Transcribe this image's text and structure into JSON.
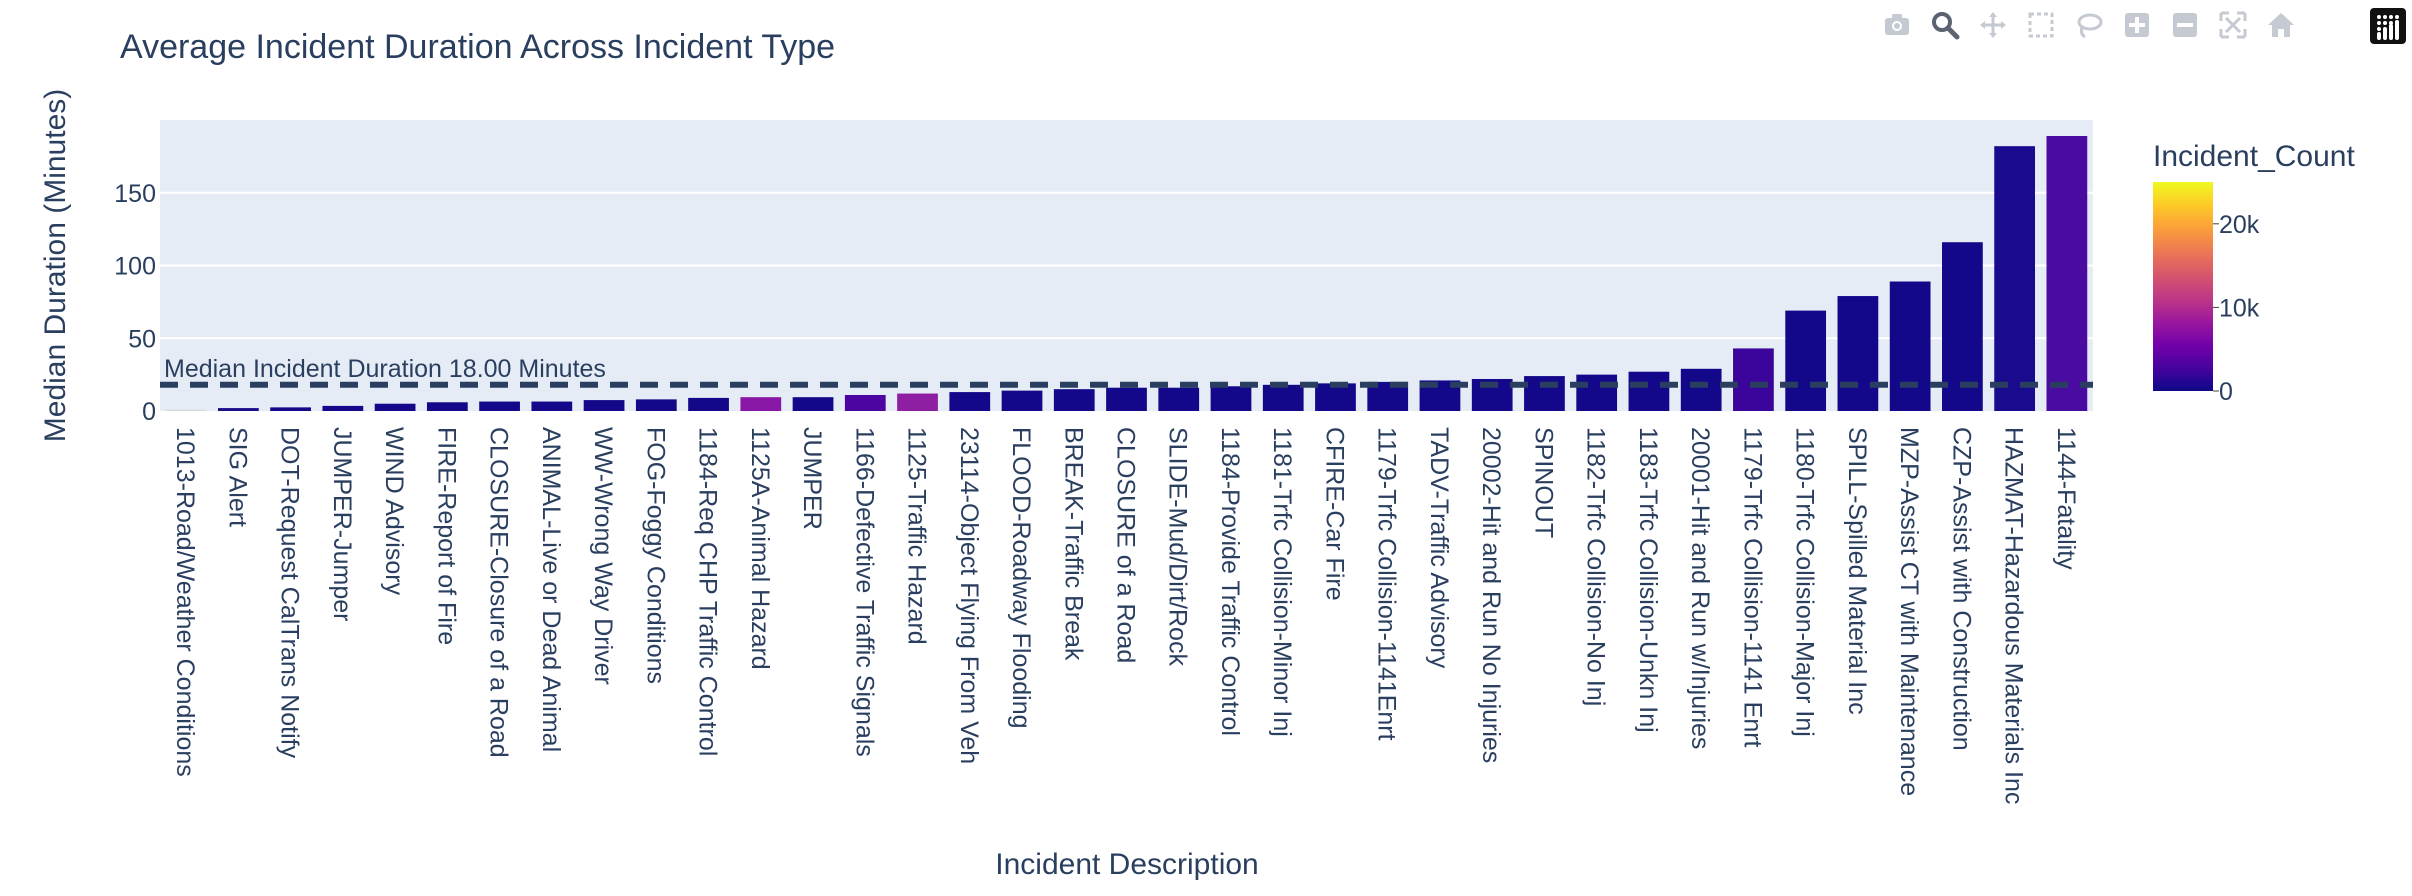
{
  "modebar": {
    "buttons": [
      {
        "name": "camera-icon",
        "active": false
      },
      {
        "name": "zoom-icon",
        "active": true
      },
      {
        "name": "pan-icon",
        "active": false
      },
      {
        "name": "box-select-icon",
        "active": false
      },
      {
        "name": "lasso-select-icon",
        "active": false
      },
      {
        "name": "zoom-in-icon",
        "active": false
      },
      {
        "name": "zoom-out-icon",
        "active": false
      },
      {
        "name": "autoscale-icon",
        "active": false
      },
      {
        "name": "reset-axes-icon",
        "active": false
      }
    ],
    "logo": "plotly-logo-icon",
    "icon_color": "#c4c9d2",
    "active_color": "#5b6270"
  },
  "chart_data": {
    "type": "bar",
    "title": "Average Incident Duration Across Incident Type",
    "xlabel": "Incident Description",
    "ylabel": "Median Duration (Minutes)",
    "ylim": [
      0,
      200
    ],
    "yticks": [
      0,
      50,
      100,
      150
    ],
    "grid": true,
    "categories": [
      "1013-Road/Weather Conditions",
      "SIG Alert",
      "DOT-Request CalTrans Notify",
      "JUMPER-Jumper",
      "WIND Advisory",
      "FIRE-Report of Fire",
      "CLOSURE-Closure of a Road",
      "ANIMAL-Live or Dead Animal",
      "WW-Wrong Way Driver",
      "FOG-Foggy Conditions",
      "1184-Req CHP Traffic Control",
      "1125A-Animal Hazard",
      "JUMPER",
      "1166-Defective Traffic Signals",
      "1125-Traffic Hazard",
      "23114-Object Flying From Veh",
      "FLOOD-Roadway Flooding",
      "BREAK-Traffic Break",
      "CLOSURE of a Road",
      "SLIDE-Mud/Dirt/Rock",
      "1184-Provide Traffic Control",
      "1181-Trfc Collision-Minor Inj",
      "CFIRE-Car Fire",
      "1179-Trfc Collision-1141Enrt",
      "TADV-Traffic Advisory",
      "20002-Hit and Run No Injuries",
      "SPINOUT",
      "1182-Trfc Collision-No Inj",
      "1183-Trfc Collision-Unkn Inj",
      "20001-Hit and Run w/Injuries",
      "1179-Trfc Collision-1141 Enrt",
      "1180-Trfc Collision-Major Inj",
      "SPILL-Spilled Material Inc",
      "MZP-Assist CT with Maintenance",
      "CZP-Assist with Construction",
      "HAZMAT-Hazardous Materials Inc",
      "1144-Fatality"
    ],
    "values": [
      1,
      2,
      2.5,
      3.5,
      5,
      6,
      6.5,
      6.5,
      7.5,
      8,
      9,
      9.5,
      9.5,
      11,
      12,
      13,
      14,
      15,
      16,
      16,
      17,
      18,
      19,
      20,
      21,
      22,
      24,
      25,
      27,
      29,
      43,
      69,
      79,
      89,
      116,
      182,
      189
    ],
    "colors": [
      "#dcdcdc",
      "#1a0d87",
      "#14088a",
      "#14088a",
      "#14088a",
      "#14088a",
      "#14088a",
      "#14088a",
      "#14088a",
      "#14088a",
      "#14088a",
      "#8a18a6",
      "#14088a",
      "#4c05a0",
      "#8e1fa3",
      "#14088a",
      "#14088a",
      "#14088a",
      "#14088a",
      "#14088a",
      "#14088a",
      "#14088a",
      "#14088a",
      "#14088a",
      "#14088a",
      "#14088a",
      "#14088a",
      "#14088a",
      "#14088a",
      "#14088a",
      "#3b049a",
      "#14088a",
      "#14088a",
      "#14088a",
      "#14088a",
      "#1a0a8e",
      "#4a0ba0"
    ],
    "reference_line": {
      "value": 18,
      "label": "Median Incident Duration 18.00 Minutes"
    },
    "colorbar": {
      "title": "Incident_Count",
      "ticks": [
        0,
        10000,
        20000
      ],
      "tick_labels": [
        "0",
        "10k",
        "20k"
      ],
      "max": 25000
    }
  }
}
